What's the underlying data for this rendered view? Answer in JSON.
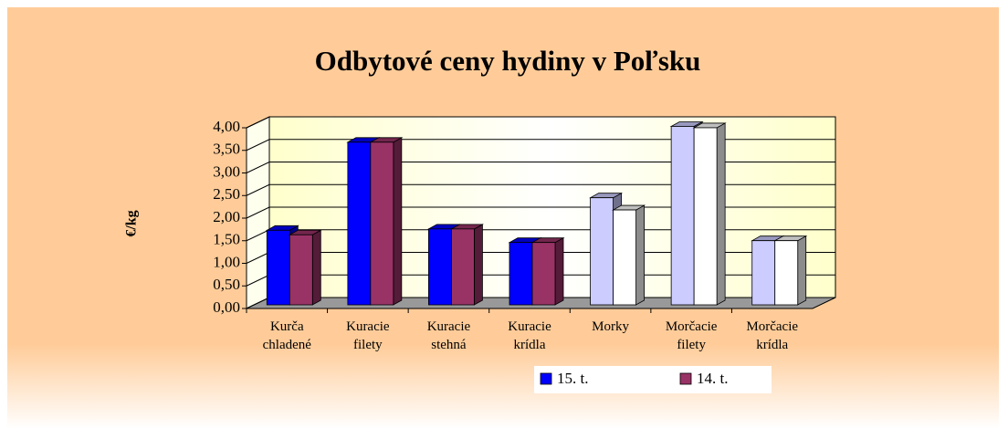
{
  "chart_data": {
    "type": "bar3d",
    "title": "Odbytové ceny hydiny v Poľsku",
    "y_label": "€/kg",
    "categories": [
      "Kurča chladené",
      "Kuracie filety",
      "Kuracie stehná",
      "Kuracie krídla",
      "Morky",
      "Morčacie filety",
      "Morčacie krídla"
    ],
    "series": [
      {
        "name": "15. t.",
        "color": "#0000ff",
        "point_colors": [
          "#0000ff",
          "#0000ff",
          "#0000ff",
          "#0000ff",
          "#ccccff",
          "#ccccff",
          "#ccccff"
        ],
        "values": [
          1.65,
          3.6,
          1.68,
          1.38,
          2.37,
          3.95,
          1.42
        ]
      },
      {
        "name": "14. t.",
        "color": "#993366",
        "point_colors": [
          "#993366",
          "#993366",
          "#993366",
          "#993366",
          "#ffffff",
          "#ffffff",
          "#ffffff"
        ],
        "values": [
          1.55,
          3.6,
          1.68,
          1.38,
          2.1,
          3.92,
          1.42
        ]
      }
    ],
    "ylim": [
      0,
      4
    ],
    "yticks": [
      {
        "value": 0,
        "label": "0,00"
      },
      {
        "value": 0.5,
        "label": "0,50"
      },
      {
        "value": 1,
        "label": "1,00"
      },
      {
        "value": 1.5,
        "label": "1,50"
      },
      {
        "value": 2,
        "label": "2,00"
      },
      {
        "value": 2.5,
        "label": "2,50"
      },
      {
        "value": 3,
        "label": "3,00"
      },
      {
        "value": 3.5,
        "label": "3,50"
      },
      {
        "value": 4,
        "label": "4,00"
      }
    ],
    "grid": true,
    "legend": "bottom"
  }
}
